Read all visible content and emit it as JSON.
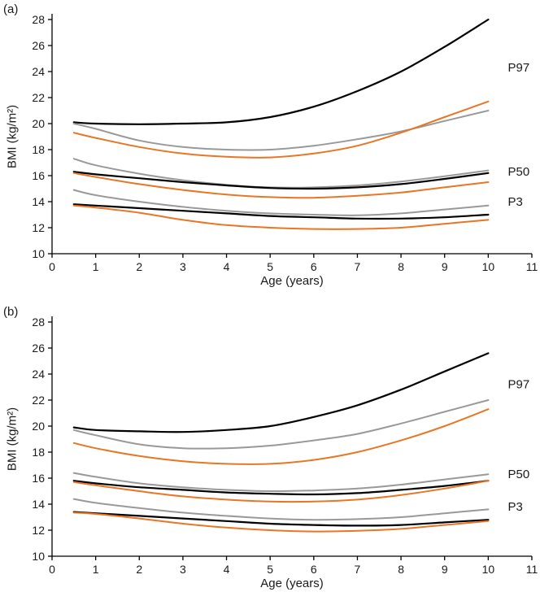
{
  "chart_data": [
    {
      "type": "line",
      "panel_label": "(a)",
      "xlabel": "Age (years)",
      "ylabel": "BMI (kg/m²)",
      "xlim": [
        0,
        11
      ],
      "ylim": [
        10,
        28
      ],
      "xticks": [
        0,
        1,
        2,
        3,
        4,
        5,
        6,
        7,
        8,
        9,
        10,
        11
      ],
      "yticks": [
        10,
        12,
        14,
        16,
        18,
        20,
        22,
        24,
        26,
        28
      ],
      "grid": false,
      "legend": "none",
      "x": [
        0.5,
        1,
        2,
        3,
        4,
        5,
        6,
        7,
        8,
        9,
        10
      ],
      "series": [
        {
          "name": "P97-black",
          "color": "#000000",
          "width": 2.2,
          "values": [
            20.1,
            20.0,
            19.95,
            20.0,
            20.1,
            20.5,
            21.3,
            22.5,
            24.0,
            25.9,
            28.0
          ]
        },
        {
          "name": "P97-gray",
          "color": "#999999",
          "width": 2.0,
          "values": [
            20.0,
            19.6,
            18.7,
            18.2,
            18.0,
            18.0,
            18.3,
            18.8,
            19.4,
            20.2,
            21.0
          ]
        },
        {
          "name": "P97-orange",
          "color": "#e87624",
          "width": 2.0,
          "values": [
            19.3,
            18.9,
            18.2,
            17.7,
            17.45,
            17.4,
            17.7,
            18.3,
            19.3,
            20.5,
            21.7
          ]
        },
        {
          "name": "P50-gray",
          "color": "#999999",
          "width": 2.0,
          "values": [
            17.3,
            16.8,
            16.15,
            15.65,
            15.3,
            15.1,
            15.1,
            15.25,
            15.55,
            15.95,
            16.4
          ]
        },
        {
          "name": "P50-black",
          "color": "#000000",
          "width": 2.2,
          "values": [
            16.3,
            16.1,
            15.8,
            15.5,
            15.25,
            15.05,
            15.0,
            15.1,
            15.35,
            15.75,
            16.2
          ]
        },
        {
          "name": "P50-orange",
          "color": "#e87624",
          "width": 2.0,
          "values": [
            16.2,
            15.9,
            15.35,
            14.9,
            14.55,
            14.35,
            14.3,
            14.45,
            14.7,
            15.1,
            15.5
          ]
        },
        {
          "name": "P3-gray",
          "color": "#999999",
          "width": 2.0,
          "values": [
            14.9,
            14.5,
            14.0,
            13.6,
            13.3,
            13.1,
            13.0,
            12.95,
            13.1,
            13.4,
            13.7
          ]
        },
        {
          "name": "P3-black",
          "color": "#000000",
          "width": 2.2,
          "values": [
            13.8,
            13.7,
            13.5,
            13.3,
            13.1,
            12.9,
            12.8,
            12.7,
            12.7,
            12.8,
            13.0
          ]
        },
        {
          "name": "P3-orange",
          "color": "#e87624",
          "width": 2.0,
          "values": [
            13.7,
            13.55,
            13.15,
            12.6,
            12.2,
            12.0,
            11.9,
            11.9,
            12.0,
            12.3,
            12.6
          ]
        }
      ],
      "annotations": [
        {
          "label": "P97",
          "x": 10.45,
          "y": 24.0
        },
        {
          "label": "P50",
          "x": 10.45,
          "y": 16.0
        },
        {
          "label": "P3",
          "x": 10.45,
          "y": 13.7
        }
      ]
    },
    {
      "type": "line",
      "panel_label": "(b)",
      "xlabel": "Age (years)",
      "ylabel": "BMI (kg/m²)",
      "xlim": [
        0,
        11
      ],
      "ylim": [
        10,
        28
      ],
      "xticks": [
        0,
        1,
        2,
        3,
        4,
        5,
        6,
        7,
        8,
        9,
        10,
        11
      ],
      "yticks": [
        10,
        12,
        14,
        16,
        18,
        20,
        22,
        24,
        26,
        28
      ],
      "grid": false,
      "legend": "none",
      "x": [
        0.5,
        1,
        2,
        3,
        4,
        5,
        6,
        7,
        8,
        9,
        10
      ],
      "series": [
        {
          "name": "P97-black",
          "color": "#000000",
          "width": 2.2,
          "values": [
            19.9,
            19.7,
            19.6,
            19.55,
            19.7,
            20.0,
            20.7,
            21.6,
            22.8,
            24.2,
            25.6
          ]
        },
        {
          "name": "P97-gray",
          "color": "#999999",
          "width": 2.0,
          "values": [
            19.7,
            19.3,
            18.6,
            18.3,
            18.3,
            18.5,
            18.9,
            19.4,
            20.2,
            21.1,
            22.0
          ]
        },
        {
          "name": "P97-orange",
          "color": "#e87624",
          "width": 2.0,
          "values": [
            18.7,
            18.3,
            17.7,
            17.3,
            17.1,
            17.1,
            17.4,
            18.0,
            18.9,
            20.0,
            21.3
          ]
        },
        {
          "name": "P50-gray",
          "color": "#999999",
          "width": 2.0,
          "values": [
            16.4,
            16.1,
            15.6,
            15.3,
            15.1,
            15.0,
            15.05,
            15.2,
            15.5,
            15.9,
            16.3
          ]
        },
        {
          "name": "P50-black",
          "color": "#000000",
          "width": 2.2,
          "values": [
            15.8,
            15.6,
            15.3,
            15.1,
            14.9,
            14.8,
            14.75,
            14.85,
            15.1,
            15.4,
            15.8
          ]
        },
        {
          "name": "P50-orange",
          "color": "#e87624",
          "width": 2.0,
          "values": [
            15.7,
            15.45,
            15.0,
            14.6,
            14.35,
            14.2,
            14.2,
            14.35,
            14.7,
            15.2,
            15.8
          ]
        },
        {
          "name": "P3-gray",
          "color": "#999999",
          "width": 2.0,
          "values": [
            14.4,
            14.1,
            13.7,
            13.35,
            13.1,
            12.9,
            12.8,
            12.85,
            13.0,
            13.3,
            13.6
          ]
        },
        {
          "name": "P3-black",
          "color": "#000000",
          "width": 2.2,
          "values": [
            13.4,
            13.3,
            13.1,
            12.9,
            12.7,
            12.5,
            12.4,
            12.35,
            12.4,
            12.6,
            12.8
          ]
        },
        {
          "name": "P3-orange",
          "color": "#e87624",
          "width": 2.0,
          "values": [
            13.35,
            13.25,
            12.9,
            12.5,
            12.2,
            12.0,
            11.9,
            11.95,
            12.1,
            12.4,
            12.7
          ]
        }
      ],
      "annotations": [
        {
          "label": "P97",
          "x": 10.45,
          "y": 22.9
        },
        {
          "label": "P50",
          "x": 10.45,
          "y": 16.0
        },
        {
          "label": "P3",
          "x": 10.45,
          "y": 13.5
        }
      ]
    }
  ],
  "colors": {
    "curve_black": "#000000",
    "curve_gray": "#999999",
    "curve_orange": "#e87624",
    "axis": "#000000",
    "background": "#ffffff"
  }
}
